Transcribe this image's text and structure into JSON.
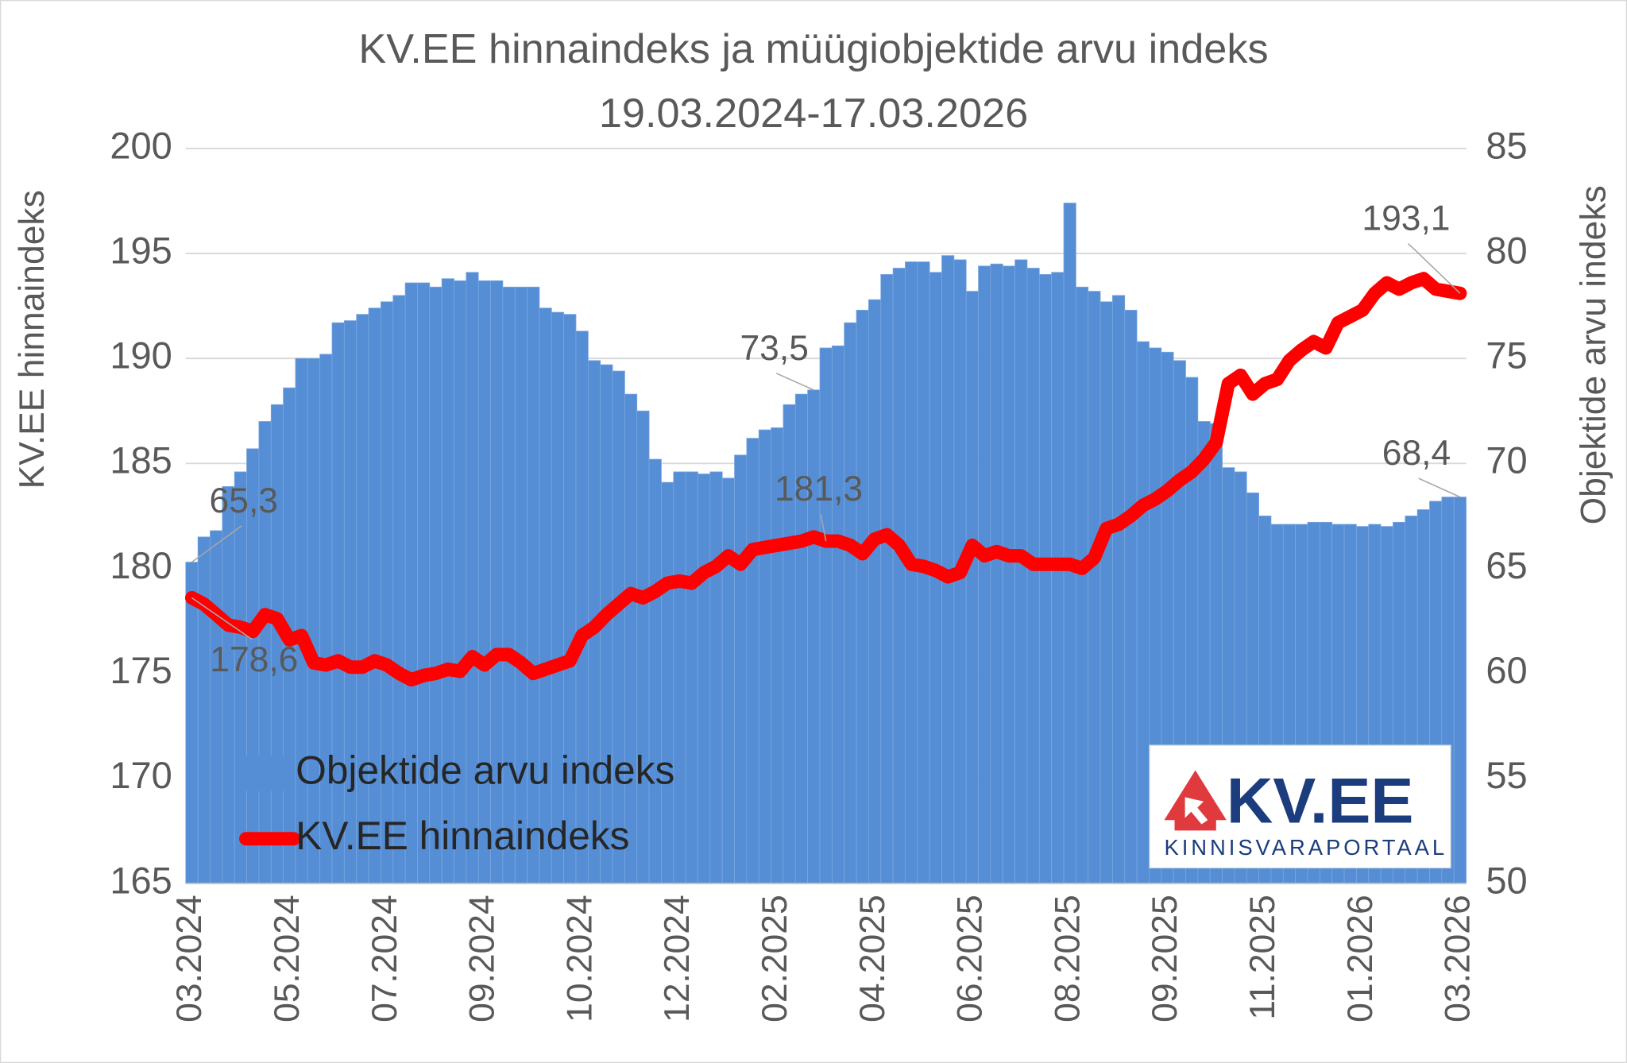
{
  "chart_data": {
    "type": "bar-line",
    "title": "KV.EE hinnaindeks ja müügiobjektide arvu indeks",
    "subtitle": "19.03.2024-17.03.2026",
    "y_label": "KV.EE hinnaindeks",
    "y2_label": "Objektide arvu indeks",
    "logo_text": "KV.EE",
    "logo_subtext": "KINNISVARAPORTAAL",
    "categories": [
      "03.2024",
      null,
      null,
      null,
      null,
      null,
      null,
      null,
      "05.2024",
      null,
      null,
      null,
      null,
      null,
      null,
      null,
      "07.2024",
      null,
      null,
      null,
      null,
      null,
      null,
      null,
      "09.2024",
      null,
      null,
      null,
      null,
      null,
      null,
      null,
      "10.2024",
      null,
      null,
      null,
      null,
      null,
      null,
      null,
      "12.2024",
      null,
      null,
      null,
      null,
      null,
      null,
      null,
      "02.2025",
      null,
      null,
      null,
      null,
      null,
      null,
      null,
      "04.2025",
      null,
      null,
      null,
      null,
      null,
      null,
      null,
      "06.2025",
      null,
      null,
      null,
      null,
      null,
      null,
      null,
      "08.2025",
      null,
      null,
      null,
      null,
      null,
      null,
      null,
      "09.2025",
      null,
      null,
      null,
      null,
      null,
      null,
      null,
      "11.2025",
      null,
      null,
      null,
      null,
      null,
      null,
      null,
      "01.2026",
      null,
      null,
      null,
      null,
      null,
      null,
      null,
      "03.2026"
    ],
    "ylim": [
      165,
      200
    ],
    "yticks": [
      165,
      170,
      175,
      180,
      185,
      190,
      195,
      200
    ],
    "y2lim": [
      50,
      85
    ],
    "y2ticks": [
      50,
      55,
      60,
      65,
      70,
      75,
      80,
      85
    ],
    "grid": true,
    "series": [
      {
        "name": "Objektide arvu indeks",
        "type": "bar",
        "axis": "y2",
        "color": "#558ed5",
        "values": [
          65.3,
          66.5,
          66.8,
          68.9,
          69.6,
          70.7,
          72.0,
          72.8,
          73.6,
          75.0,
          75.0,
          75.2,
          76.7,
          76.8,
          77.1,
          77.4,
          77.7,
          78.0,
          78.6,
          78.6,
          78.4,
          78.8,
          78.7,
          79.1,
          78.7,
          78.7,
          78.4,
          78.4,
          78.4,
          77.4,
          77.2,
          77.1,
          76.3,
          74.9,
          74.7,
          74.4,
          73.3,
          72.5,
          70.2,
          69.1,
          69.6,
          69.6,
          69.5,
          69.6,
          69.3,
          70.4,
          71.2,
          71.6,
          71.7,
          72.8,
          73.3,
          73.5,
          75.5,
          75.6,
          76.7,
          77.3,
          77.8,
          79.0,
          79.3,
          79.6,
          79.6,
          79.1,
          79.9,
          79.7,
          78.2,
          79.4,
          79.5,
          79.4,
          79.7,
          79.3,
          79.0,
          79.1,
          82.4,
          78.4,
          78.2,
          77.7,
          78.0,
          77.3,
          75.8,
          75.5,
          75.3,
          74.9,
          74.1,
          72.0,
          71.9,
          69.8,
          69.6,
          68.6,
          67.5,
          67.1,
          67.1,
          67.1,
          67.2,
          67.2,
          67.1,
          67.1,
          67.0,
          67.1,
          67.0,
          67.2,
          67.5,
          67.8,
          68.2,
          68.4,
          68.4
        ],
        "value_labels": [
          "65,3",
          null,
          null,
          null,
          null,
          null,
          null,
          null,
          null,
          null,
          null,
          null,
          null,
          null,
          null,
          null,
          null,
          null,
          null,
          null,
          null,
          null,
          null,
          null,
          null,
          null,
          null,
          null,
          null,
          null,
          null,
          null,
          null,
          null,
          null,
          null,
          null,
          null,
          null,
          null,
          null,
          null,
          null,
          null,
          null,
          null,
          null,
          null,
          null,
          null,
          null,
          "73,5",
          null,
          null,
          null,
          null,
          null,
          null,
          null,
          null,
          null,
          null,
          null,
          null,
          null,
          null,
          null,
          null,
          null,
          null,
          null,
          null,
          null,
          null,
          null,
          null,
          null,
          null,
          null,
          null,
          null,
          null,
          null,
          null,
          null,
          null,
          null,
          null,
          null,
          null,
          null,
          null,
          null,
          null,
          null,
          null,
          null,
          null,
          null,
          null,
          null,
          null,
          null,
          null,
          "68,4"
        ]
      },
      {
        "name": "KV.EE hinnaindeks",
        "type": "line",
        "axis": "y",
        "color": "#ff0000",
        "values": [
          178.6,
          178.3,
          177.8,
          177.3,
          177.2,
          177.0,
          177.8,
          177.6,
          176.6,
          176.8,
          175.5,
          175.4,
          175.6,
          175.3,
          175.3,
          175.6,
          175.4,
          175.0,
          174.7,
          174.9,
          175.0,
          175.2,
          175.1,
          175.8,
          175.4,
          175.9,
          175.9,
          175.5,
          175.0,
          175.2,
          175.4,
          175.6,
          176.8,
          177.2,
          177.8,
          178.3,
          178.8,
          178.6,
          178.9,
          179.3,
          179.4,
          179.3,
          179.8,
          180.1,
          180.6,
          180.2,
          180.9,
          181.0,
          181.1,
          181.2,
          181.3,
          181.5,
          181.3,
          181.3,
          181.1,
          180.7,
          181.4,
          181.6,
          181.1,
          180.2,
          180.1,
          179.9,
          179.6,
          179.8,
          181.1,
          180.6,
          180.8,
          180.6,
          180.6,
          180.2,
          180.2,
          180.2,
          180.2,
          180.0,
          180.5,
          181.9,
          182.1,
          182.5,
          183.0,
          183.3,
          183.7,
          184.2,
          184.6,
          185.2,
          186.0,
          188.8,
          189.2,
          188.3,
          188.8,
          189.0,
          189.9,
          190.4,
          190.8,
          190.5,
          191.7,
          192.0,
          192.3,
          193.1,
          193.6,
          193.3,
          193.6,
          193.8,
          193.3,
          193.2,
          193.1
        ],
        "value_labels": [
          "178,6",
          null,
          null,
          null,
          null,
          null,
          null,
          null,
          null,
          null,
          null,
          null,
          null,
          null,
          null,
          null,
          null,
          null,
          null,
          null,
          null,
          null,
          null,
          null,
          null,
          null,
          null,
          null,
          null,
          null,
          null,
          null,
          null,
          null,
          null,
          null,
          null,
          null,
          null,
          null,
          null,
          null,
          null,
          null,
          null,
          null,
          null,
          null,
          null,
          null,
          null,
          null,
          "181,3",
          null,
          null,
          null,
          null,
          null,
          null,
          null,
          null,
          null,
          null,
          null,
          null,
          null,
          null,
          null,
          null,
          null,
          null,
          null,
          null,
          null,
          null,
          null,
          null,
          null,
          null,
          null,
          null,
          null,
          null,
          null,
          null,
          null,
          null,
          null,
          null,
          null,
          null,
          null,
          null,
          null,
          null,
          null,
          null,
          null,
          null,
          null,
          null,
          null,
          null,
          null,
          "193,1"
        ]
      }
    ]
  }
}
